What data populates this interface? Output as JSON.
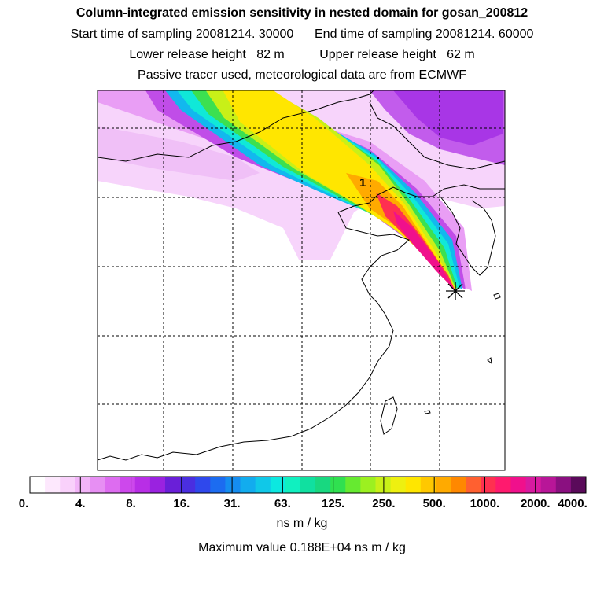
{
  "title": "Column-integrated emission sensitivity in nested domain for gosan_200812",
  "sampling": {
    "start": "Start time of sampling 20081214. 30000",
    "end": "End time of sampling 20081214. 60000"
  },
  "release": {
    "lower": "Lower release height   82 m",
    "upper": "Upper release height   62 m"
  },
  "tracer_note": "Passive tracer used, meteorological data are from ECMWF",
  "map": {
    "marker_label": "1",
    "receptor_symbol": "star"
  },
  "colorbar": {
    "tick_labels": [
      "0.",
      "4.",
      "8.",
      "16.",
      "31.",
      "63.",
      "125.",
      "250.",
      "500.",
      "1000.",
      "2000.",
      "4000."
    ],
    "colors": [
      "#ffffff",
      "#fde8fd",
      "#f9d1fb",
      "#f2b4f8",
      "#e78ff3",
      "#dd6cf0",
      "#cd48ec",
      "#b82ee6",
      "#9a22e0",
      "#6a1fd8",
      "#4a2ee0",
      "#2f48ec",
      "#1c6cf0",
      "#158df0",
      "#12acee",
      "#10c8e8",
      "#0ce8e0",
      "#10f0c0",
      "#10e0a0",
      "#18d880",
      "#30e050",
      "#66ea30",
      "#9cf020",
      "#c8f018",
      "#eef010",
      "#ffe600",
      "#ffc800",
      "#ffaa00",
      "#ff8800",
      "#ff6030",
      "#ff3050",
      "#ff1a6e",
      "#f0108c",
      "#d81aa0",
      "#b81698",
      "#8a1080",
      "#5a0a5a"
    ]
  },
  "units": "ns m / kg",
  "max_value": "Maximum value  0.188E+04 ns m / kg",
  "chart_data": {
    "type": "heatmap",
    "title": "Column-integrated emission sensitivity in nested domain for gosan_200812",
    "colorbar_label": "ns m / kg",
    "colorbar_levels": [
      0,
      4,
      8,
      16,
      31,
      63,
      125,
      250,
      500,
      1000,
      2000,
      4000
    ],
    "maximum_value": 1880,
    "grid": true
  }
}
